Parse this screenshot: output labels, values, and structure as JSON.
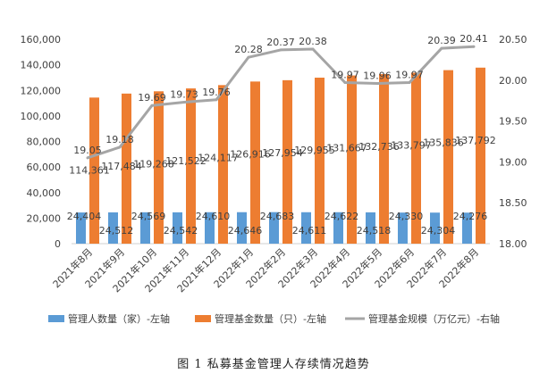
{
  "chart_data": {
    "type": "bar",
    "categories": [
      "2021年8月",
      "2021年9月",
      "2021年10月",
      "2021年11月",
      "2021年12月",
      "2022年1月",
      "2022年2月",
      "2022年3月",
      "2022年4月",
      "2022年5月",
      "2022年6月",
      "2022年7月",
      "2022年8月"
    ],
    "series": [
      {
        "name": "管理人数量（家）-左轴",
        "type": "bar",
        "axis": "left",
        "color": "#5B9BD5",
        "values": [
          24404,
          24512,
          24569,
          24542,
          24610,
          24646,
          24683,
          24611,
          24622,
          24518,
          24330,
          24304,
          24276
        ]
      },
      {
        "name": "管理基金数量（只）-左轴",
        "type": "bar",
        "axis": "left",
        "color": "#ED7D31",
        "values": [
          114361,
          117484,
          119268,
          121522,
          124117,
          126916,
          127954,
          129955,
          131667,
          132736,
          133797,
          135836,
          137792
        ]
      },
      {
        "name": "管理基金规模（万亿元）-右轴",
        "type": "line",
        "axis": "right",
        "color": "#A5A5A5",
        "values": [
          19.05,
          19.18,
          19.69,
          19.73,
          19.76,
          20.28,
          20.37,
          20.38,
          19.97,
          19.96,
          19.97,
          20.39,
          20.41
        ]
      }
    ],
    "left_axis": {
      "min": 0,
      "max": 160000,
      "step": 20000,
      "ticks": [
        "0",
        "20,000",
        "40,000",
        "60,000",
        "80,000",
        "100,000",
        "120,000",
        "140,000",
        "160,000"
      ]
    },
    "right_axis": {
      "min": 18.0,
      "max": 20.5,
      "step": 0.5,
      "ticks": [
        "18.00",
        "18.50",
        "19.00",
        "19.50",
        "20.00",
        "20.50"
      ]
    },
    "bar_labels": {
      "managers": [
        "24,404",
        "24,512",
        "24,569",
        "24,542",
        "24,610",
        "24,646",
        "24,683",
        "24,611",
        "24,622",
        "24,518",
        "24,330",
        "24,304",
        "24,276"
      ],
      "funds": [
        "114,361",
        "117,484",
        "119,268",
        "121,522",
        "124,117",
        "126,916",
        "127,954",
        "129,955",
        "131,667",
        "132,736",
        "133,797",
        "135,836",
        "137,792"
      ],
      "scale": [
        "19.05",
        "19.18",
        "19.69",
        "19.73",
        "19.76",
        "20.28",
        "20.37",
        "20.38",
        "19.97",
        "19.96",
        "19.97",
        "20.39",
        "20.41"
      ]
    },
    "legend": [
      "管理人数量（家）-左轴",
      "管理基金数量（只）-左轴",
      "管理基金规模（万亿元）-右轴"
    ],
    "legend_position": "bottom",
    "title": "图 1  私募基金管理人存续情况趋势",
    "grid": false
  }
}
